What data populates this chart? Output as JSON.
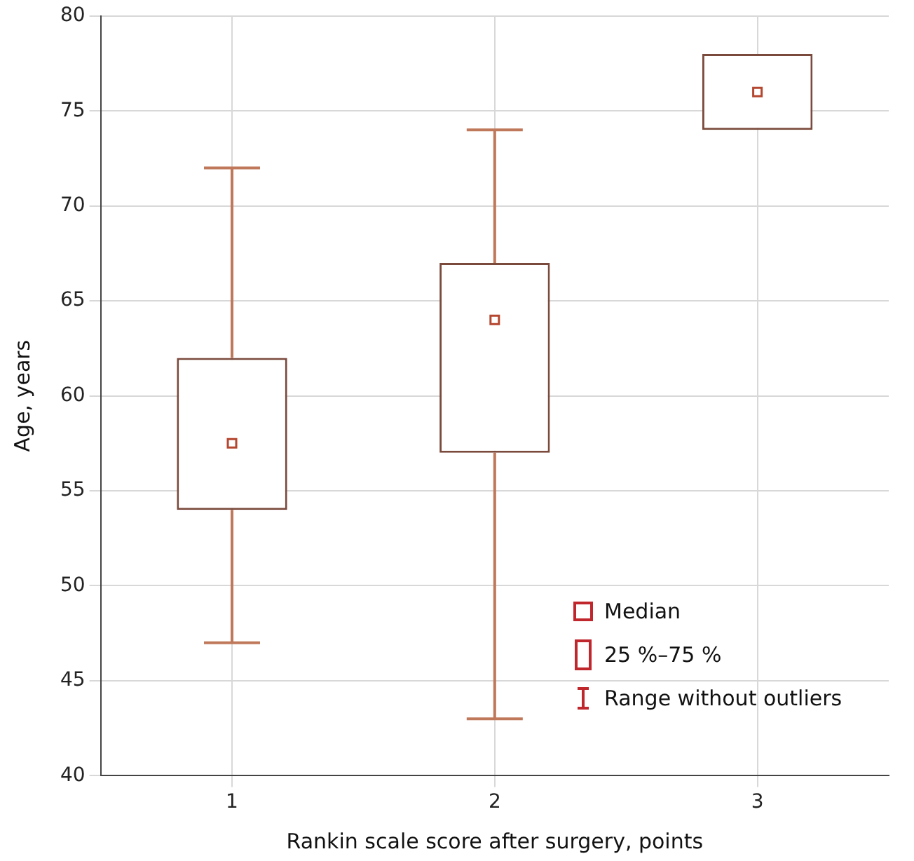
{
  "chart_data": {
    "type": "box",
    "xlabel": "Rankin scale score after surgery, points",
    "ylabel": "Age, years",
    "categories": [
      "1",
      "2",
      "3"
    ],
    "boxes": [
      {
        "low": 47,
        "q1": 54,
        "median": 57.5,
        "q3": 62,
        "high": 72
      },
      {
        "low": 43,
        "q1": 57,
        "median": 64,
        "q3": 67,
        "high": 74
      },
      {
        "low": 74,
        "q1": 74,
        "median": 76,
        "q3": 78,
        "high": 78
      }
    ],
    "color": "#7a4a3c",
    "ylim": [
      40,
      80
    ],
    "yticks": [
      40,
      45,
      50,
      55,
      60,
      65,
      70,
      75,
      80
    ],
    "grid": true,
    "annotations": [
      "Median",
      "25 %–75 %",
      "Range without outliers"
    ]
  }
}
